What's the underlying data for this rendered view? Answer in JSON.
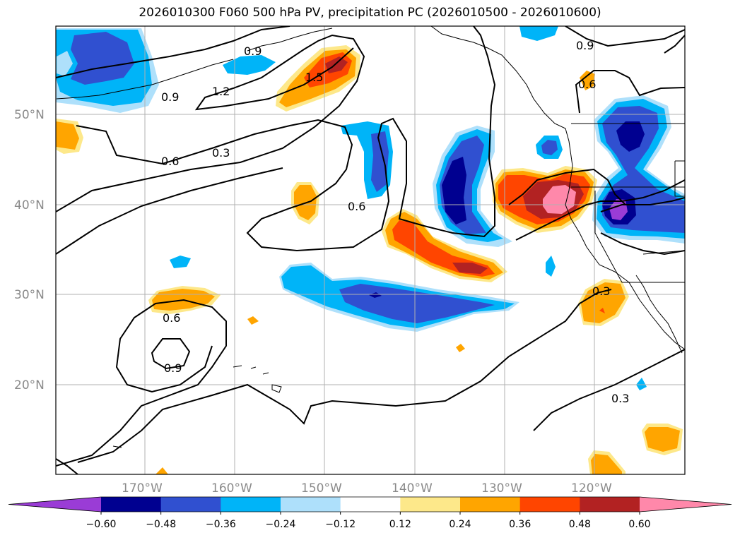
{
  "title": "2026010300 F060 500 hPa PV, precipitation PC (2026010500 - 2026010600)",
  "map": {
    "lat_labels": [
      "50°N",
      "40°N",
      "30°N",
      "20°N"
    ],
    "lon_labels": [
      "170°W",
      "160°W",
      "150°W",
      "140°W",
      "130°W",
      "120°W"
    ],
    "contour_labels": [
      "0.9",
      "0.9",
      "1.2",
      "1.5",
      "0.6",
      "0.3",
      "0.6",
      "0.9",
      "0.6",
      "0.6",
      "0.9",
      "0.3",
      "0.3"
    ]
  },
  "colorbar": {
    "ticks": [
      "−0.60",
      "−0.48",
      "−0.36",
      "−0.24",
      "−0.12",
      "0.12",
      "0.24",
      "0.36",
      "0.48",
      "0.60"
    ],
    "colors": [
      "#9a3cd6",
      "#000090",
      "#3050d0",
      "#00b4f8",
      "#aee0fb",
      "#ffffff",
      "#fde88a",
      "#ffa500",
      "#ff4500",
      "#b22222",
      "#ff88aa"
    ]
  },
  "colors": {
    "purple": "#9a3cd6",
    "navy": "#000090",
    "blue": "#3050d0",
    "cyan": "#00b4f8",
    "lightblue": "#aee0fb",
    "lightyellow": "#fde88a",
    "orange": "#ffa500",
    "redorange": "#ff4500",
    "darkred": "#b22222",
    "pink": "#ff88aa"
  }
}
